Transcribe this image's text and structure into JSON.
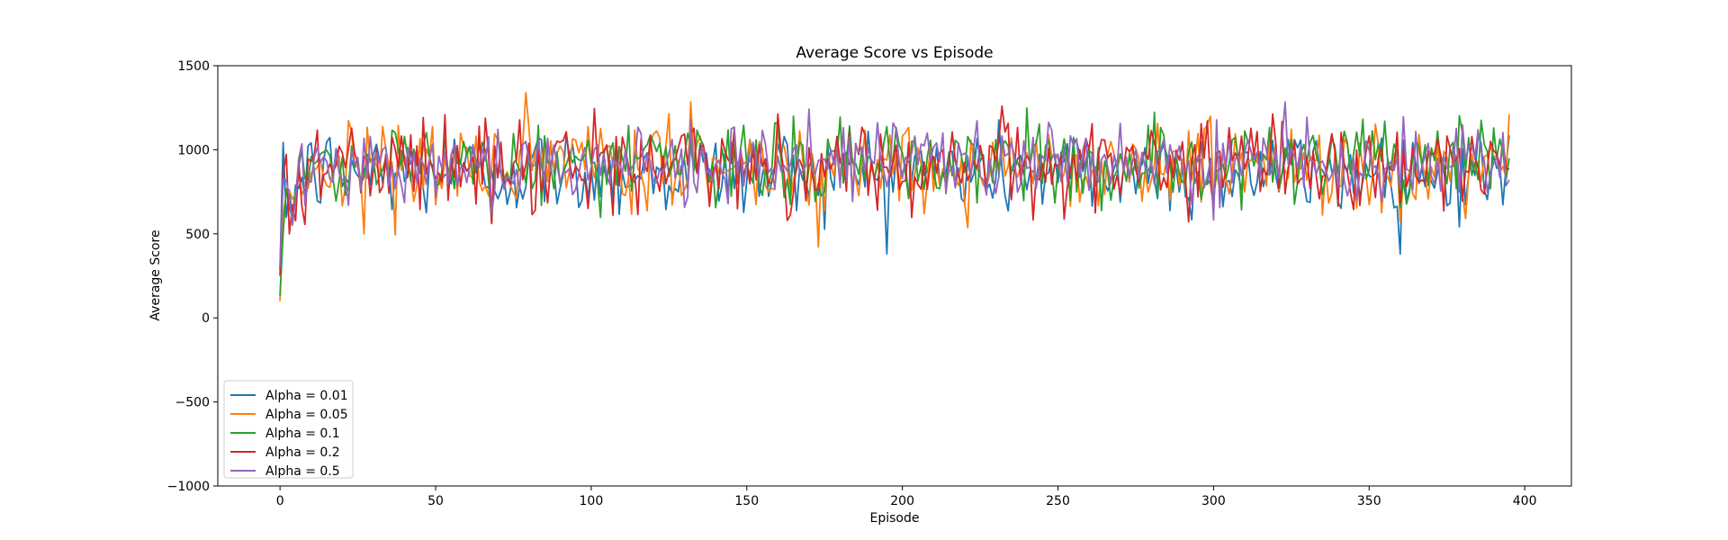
{
  "chart_data": {
    "type": "line",
    "title": "Average Score vs Episode",
    "xlabel": "Episode",
    "ylabel": "Average Score",
    "xlim": [
      -20,
      415
    ],
    "ylim": [
      -1000,
      1500
    ],
    "xticks": [
      0,
      50,
      100,
      150,
      200,
      250,
      300,
      350,
      400
    ],
    "yticks": [
      -1000,
      -500,
      0,
      500,
      1000,
      1500
    ],
    "grid": false,
    "legend_position": "lower-left",
    "n_points": 396,
    "series": [
      {
        "name": "Alpha = 0.01",
        "color": "#1f77b4",
        "start": 290,
        "mean": 870,
        "spread": 190
      },
      {
        "name": "Alpha = 0.05",
        "color": "#ff7f0e",
        "start": 100,
        "mean": 905,
        "spread": 190
      },
      {
        "name": "Alpha = 0.1",
        "color": "#2ca02c",
        "start": 130,
        "mean": 920,
        "spread": 180
      },
      {
        "name": "Alpha = 0.2",
        "color": "#d62728",
        "start": 250,
        "mean": 910,
        "spread": 185
      },
      {
        "name": "Alpha = 0.5",
        "color": "#9467bd",
        "start": 300,
        "mean": 925,
        "spread": 160
      }
    ]
  }
}
